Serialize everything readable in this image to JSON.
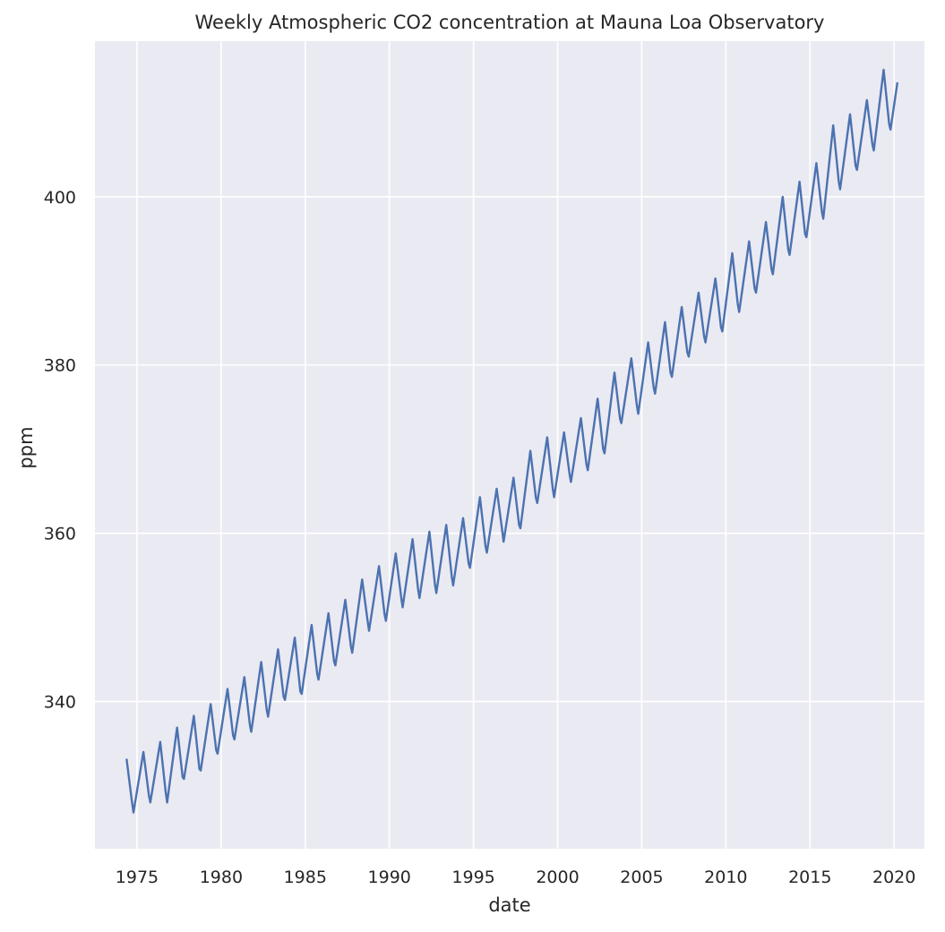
{
  "chart_data": {
    "type": "line",
    "title": "Weekly Atmospheric CO2 concentration at Mauna Loa Observatory",
    "xlabel": "date",
    "ylabel": "ppm",
    "xlim": [
      1972.5,
      2021.8
    ],
    "ylim": [
      322.5,
      418.5
    ],
    "x_ticks": [
      1975,
      1980,
      1985,
      1990,
      1995,
      2000,
      2005,
      2010,
      2015,
      2020
    ],
    "x_tick_labels": [
      "1975",
      "1980",
      "1985",
      "1990",
      "1995",
      "2000",
      "2005",
      "2010",
      "2015",
      "2020"
    ],
    "y_ticks": [
      340,
      360,
      380,
      400
    ],
    "y_tick_labels": [
      "340",
      "360",
      "380",
      "400"
    ],
    "grid": true,
    "style": {
      "background": "#eaeaf2",
      "grid_color": "#ffffff",
      "line_color": "#4c72b0"
    },
    "series": [
      {
        "x": [
          1974.38,
          1974.67,
          1974.79,
          1975.38,
          1975.71,
          1975.79,
          1976.38,
          1976.7,
          1976.79,
          1977.38,
          1977.71,
          1977.79,
          1978.38,
          1978.71,
          1978.79,
          1979.38,
          1979.71,
          1979.79,
          1980.38,
          1980.71,
          1980.79,
          1981.38,
          1981.71,
          1981.79,
          1982.38,
          1982.71,
          1982.79,
          1983.38,
          1983.71,
          1983.79,
          1984.38,
          1984.71,
          1984.79,
          1985.38,
          1985.71,
          1985.79,
          1986.38,
          1986.71,
          1986.79,
          1987.38,
          1987.71,
          1987.79,
          1988.38,
          1988.71,
          1988.79,
          1989.38,
          1989.71,
          1989.79,
          1990.38,
          1990.71,
          1990.79,
          1991.38,
          1991.71,
          1991.79,
          1992.38,
          1992.71,
          1992.79,
          1993.38,
          1993.71,
          1993.79,
          1994.38,
          1994.71,
          1994.79,
          1995.38,
          1995.71,
          1995.79,
          1996.38,
          1996.71,
          1996.79,
          1997.38,
          1997.71,
          1997.79,
          1998.38,
          1998.71,
          1998.79,
          1999.38,
          1999.71,
          1999.79,
          2000.38,
          2000.71,
          2000.79,
          2001.38,
          2001.71,
          2001.79,
          2002.38,
          2002.71,
          2002.79,
          2003.38,
          2003.71,
          2003.79,
          2004.38,
          2004.71,
          2004.79,
          2005.38,
          2005.71,
          2005.79,
          2006.38,
          2006.71,
          2006.79,
          2007.38,
          2007.71,
          2007.79,
          2008.38,
          2008.71,
          2008.79,
          2009.38,
          2009.71,
          2009.79,
          2010.38,
          2010.71,
          2010.79,
          2011.38,
          2011.71,
          2011.79,
          2012.38,
          2012.71,
          2012.79,
          2013.38,
          2013.71,
          2013.79,
          2014.38,
          2014.71,
          2014.79,
          2015.38,
          2015.71,
          2015.79,
          2016.38,
          2016.71,
          2016.79,
          2017.38,
          2017.71,
          2017.79,
          2018.38,
          2018.71,
          2018.79,
          2019.38,
          2019.71,
          2019.79,
          2020.2
        ],
        "y": [
          333.2,
          328.5,
          326.8,
          334.0,
          328.8,
          328.0,
          335.2,
          329.3,
          328.0,
          336.9,
          331.0,
          330.8,
          338.3,
          332.0,
          331.8,
          339.7,
          334.2,
          333.8,
          341.5,
          336.0,
          335.5,
          342.9,
          337.2,
          336.4,
          344.7,
          339.0,
          338.2,
          346.2,
          340.6,
          340.2,
          347.6,
          341.2,
          340.9,
          349.1,
          343.3,
          342.6,
          350.5,
          344.8,
          344.3,
          352.1,
          346.6,
          345.8,
          354.5,
          349.5,
          348.4,
          356.1,
          350.4,
          349.6,
          357.6,
          352.3,
          351.2,
          359.3,
          353.3,
          352.3,
          360.2,
          353.9,
          352.9,
          361.0,
          354.8,
          353.8,
          361.8,
          356.4,
          355.9,
          364.3,
          358.5,
          357.7,
          365.3,
          360.3,
          359.0,
          366.6,
          361.0,
          360.6,
          369.8,
          364.2,
          363.6,
          371.4,
          365.3,
          364.3,
          372.0,
          367.0,
          366.1,
          373.7,
          368.2,
          367.5,
          376.0,
          370.0,
          369.5,
          379.1,
          373.6,
          373.1,
          380.8,
          375.2,
          374.2,
          382.7,
          377.3,
          376.6,
          385.1,
          379.1,
          378.6,
          386.9,
          381.5,
          381.0,
          388.6,
          383.4,
          382.7,
          390.3,
          384.5,
          384.0,
          393.3,
          387.2,
          386.3,
          394.7,
          389.1,
          388.6,
          397.0,
          391.4,
          390.8,
          400.0,
          393.7,
          393.1,
          401.8,
          395.6,
          395.2,
          404.0,
          398.2,
          397.4,
          408.5,
          401.8,
          400.9,
          409.8,
          403.7,
          403.2,
          411.5,
          406.2,
          405.5,
          415.1,
          408.6,
          408.0,
          413.6
        ]
      }
    ]
  }
}
